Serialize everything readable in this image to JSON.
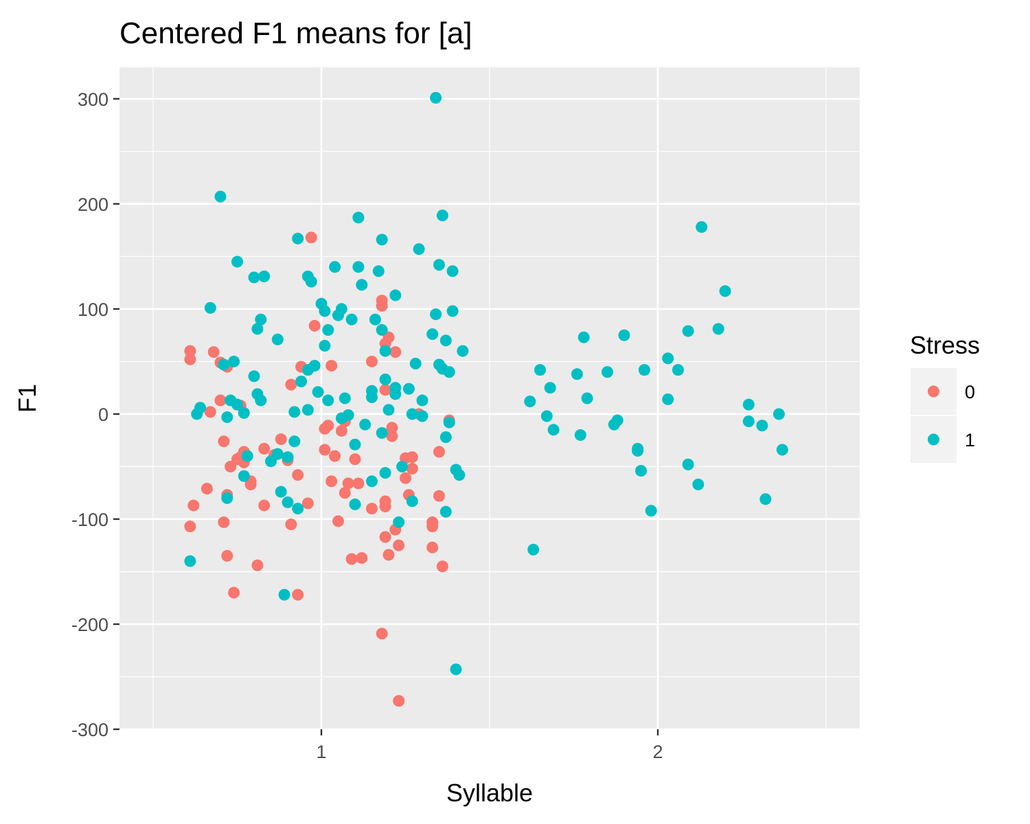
{
  "chart_data": {
    "type": "scatter",
    "title": "Centered F1 means for [a]",
    "xlabel": "Syllable",
    "ylabel": "F1",
    "xlim": [
      0.4,
      2.6
    ],
    "ylim": [
      -300,
      330
    ],
    "xticks": [
      "1",
      "2"
    ],
    "yticks": [
      "300",
      "200",
      "100",
      "0",
      "-100",
      "-200",
      "-300"
    ],
    "grid": true,
    "legend": {
      "title": "Stress",
      "position": "right"
    },
    "series": [
      {
        "name": "0",
        "color": "#F8766D",
        "points": [
          [
            0.61,
            60
          ],
          [
            0.61,
            52
          ],
          [
            0.61,
            -107
          ],
          [
            0.62,
            -87
          ],
          [
            0.66,
            -71
          ],
          [
            0.67,
            2
          ],
          [
            0.68,
            59
          ],
          [
            0.7,
            49
          ],
          [
            0.7,
            13
          ],
          [
            0.71,
            -26
          ],
          [
            0.71,
            -103
          ],
          [
            0.72,
            -135
          ],
          [
            0.72,
            -77
          ],
          [
            0.72,
            45
          ],
          [
            0.73,
            -50
          ],
          [
            0.74,
            -170
          ],
          [
            0.75,
            -43
          ],
          [
            0.76,
            8
          ],
          [
            0.76,
            -41
          ],
          [
            0.77,
            -36
          ],
          [
            0.77,
            -46
          ],
          [
            0.78,
            -40
          ],
          [
            0.79,
            -64
          ],
          [
            0.79,
            -67
          ],
          [
            0.81,
            -144
          ],
          [
            0.83,
            -33
          ],
          [
            0.83,
            -87
          ],
          [
            0.86,
            -39
          ],
          [
            0.88,
            -24
          ],
          [
            0.9,
            -44
          ],
          [
            0.91,
            28
          ],
          [
            0.91,
            -105
          ],
          [
            0.93,
            -58
          ],
          [
            0.93,
            -172
          ],
          [
            0.94,
            45
          ],
          [
            0.96,
            -85
          ],
          [
            0.97,
            168
          ],
          [
            0.98,
            84
          ],
          [
            1.01,
            -34
          ],
          [
            1.01,
            -14
          ],
          [
            1.02,
            -11
          ],
          [
            1.03,
            46
          ],
          [
            1.03,
            -64
          ],
          [
            1.04,
            -40
          ],
          [
            1.05,
            -102
          ],
          [
            1.06,
            -16
          ],
          [
            1.07,
            -7
          ],
          [
            1.07,
            -75
          ],
          [
            1.08,
            -66
          ],
          [
            1.09,
            -138
          ],
          [
            1.1,
            -43
          ],
          [
            1.11,
            -66
          ],
          [
            1.12,
            -137
          ],
          [
            1.15,
            -90
          ],
          [
            1.15,
            50
          ],
          [
            1.18,
            -209
          ],
          [
            1.18,
            108
          ],
          [
            1.18,
            103
          ],
          [
            1.19,
            67
          ],
          [
            1.19,
            23
          ],
          [
            1.19,
            -83
          ],
          [
            1.19,
            -88
          ],
          [
            1.19,
            -117
          ],
          [
            1.2,
            -134
          ],
          [
            1.2,
            73
          ],
          [
            1.21,
            -21
          ],
          [
            1.21,
            -13
          ],
          [
            1.22,
            59
          ],
          [
            1.22,
            -110
          ],
          [
            1.23,
            -125
          ],
          [
            1.23,
            -273
          ],
          [
            1.25,
            -61
          ],
          [
            1.25,
            -42
          ],
          [
            1.26,
            -77
          ],
          [
            1.27,
            -52
          ],
          [
            1.27,
            -41
          ],
          [
            1.29,
            0
          ],
          [
            1.33,
            -103
          ],
          [
            1.33,
            -107
          ],
          [
            1.33,
            -127
          ],
          [
            1.35,
            -36
          ],
          [
            1.35,
            -78
          ],
          [
            1.36,
            -145
          ],
          [
            1.38,
            -6
          ]
        ]
      },
      {
        "name": "1",
        "color": "#00BFC4",
        "points": [
          [
            0.61,
            -140
          ],
          [
            0.63,
            0
          ],
          [
            0.64,
            6
          ],
          [
            0.67,
            101
          ],
          [
            0.7,
            207
          ],
          [
            0.71,
            47
          ],
          [
            0.72,
            -80
          ],
          [
            0.72,
            -3
          ],
          [
            0.73,
            13
          ],
          [
            0.74,
            50
          ],
          [
            0.75,
            145
          ],
          [
            0.75,
            9
          ],
          [
            0.77,
            1
          ],
          [
            0.77,
            -59
          ],
          [
            0.78,
            -40
          ],
          [
            0.8,
            130
          ],
          [
            0.8,
            36
          ],
          [
            0.81,
            19
          ],
          [
            0.81,
            81
          ],
          [
            0.82,
            90
          ],
          [
            0.82,
            13
          ],
          [
            0.83,
            131
          ],
          [
            0.85,
            -45
          ],
          [
            0.87,
            -38
          ],
          [
            0.87,
            71
          ],
          [
            0.88,
            -74
          ],
          [
            0.89,
            -172
          ],
          [
            0.9,
            -84
          ],
          [
            0.9,
            -41
          ],
          [
            0.92,
            2
          ],
          [
            0.92,
            -26
          ],
          [
            0.93,
            167
          ],
          [
            0.93,
            -90
          ],
          [
            0.94,
            31
          ],
          [
            0.96,
            42
          ],
          [
            0.96,
            4
          ],
          [
            0.96,
            131
          ],
          [
            0.97,
            126
          ],
          [
            0.98,
            46
          ],
          [
            0.99,
            21
          ],
          [
            1.0,
            105
          ],
          [
            1.01,
            98
          ],
          [
            1.01,
            65
          ],
          [
            1.02,
            80
          ],
          [
            1.02,
            13
          ],
          [
            1.04,
            140
          ],
          [
            1.05,
            94
          ],
          [
            1.06,
            100
          ],
          [
            1.06,
            -4
          ],
          [
            1.07,
            15
          ],
          [
            1.08,
            -1
          ],
          [
            1.09,
            90
          ],
          [
            1.1,
            -29
          ],
          [
            1.1,
            -86
          ],
          [
            1.11,
            140
          ],
          [
            1.11,
            187
          ],
          [
            1.12,
            123
          ],
          [
            1.13,
            -10
          ],
          [
            1.15,
            16
          ],
          [
            1.15,
            22
          ],
          [
            1.15,
            -64
          ],
          [
            1.16,
            90
          ],
          [
            1.17,
            136
          ],
          [
            1.18,
            166
          ],
          [
            1.18,
            80
          ],
          [
            1.18,
            -18
          ],
          [
            1.19,
            60
          ],
          [
            1.19,
            33
          ],
          [
            1.19,
            -56
          ],
          [
            1.2,
            4
          ],
          [
            1.22,
            19
          ],
          [
            1.22,
            113
          ],
          [
            1.22,
            25
          ],
          [
            1.23,
            -103
          ],
          [
            1.24,
            -50
          ],
          [
            1.26,
            24
          ],
          [
            1.27,
            0
          ],
          [
            1.27,
            -83
          ],
          [
            1.28,
            48
          ],
          [
            1.29,
            157
          ],
          [
            1.3,
            13
          ],
          [
            1.3,
            -2
          ],
          [
            1.33,
            76
          ],
          [
            1.34,
            95
          ],
          [
            1.34,
            301
          ],
          [
            1.35,
            47
          ],
          [
            1.35,
            142
          ],
          [
            1.36,
            43
          ],
          [
            1.36,
            189
          ],
          [
            1.37,
            70
          ],
          [
            1.37,
            -93
          ],
          [
            1.37,
            -22
          ],
          [
            1.38,
            -8
          ],
          [
            1.38,
            40
          ],
          [
            1.39,
            136
          ],
          [
            1.39,
            98
          ],
          [
            1.4,
            -243
          ],
          [
            1.4,
            -53
          ],
          [
            1.41,
            -58
          ],
          [
            1.42,
            60
          ],
          [
            1.62,
            12
          ],
          [
            1.63,
            -129
          ],
          [
            1.65,
            42
          ],
          [
            1.67,
            -2
          ],
          [
            1.68,
            25
          ],
          [
            1.69,
            -15
          ],
          [
            1.76,
            38
          ],
          [
            1.77,
            -20
          ],
          [
            1.78,
            73
          ],
          [
            1.79,
            15
          ],
          [
            1.85,
            40
          ],
          [
            1.87,
            -10
          ],
          [
            1.88,
            -6
          ],
          [
            1.9,
            75
          ],
          [
            1.94,
            -35
          ],
          [
            1.94,
            -33
          ],
          [
            1.95,
            -54
          ],
          [
            1.96,
            42
          ],
          [
            1.98,
            -92
          ],
          [
            2.03,
            53
          ],
          [
            2.03,
            14
          ],
          [
            2.06,
            42
          ],
          [
            2.09,
            79
          ],
          [
            2.09,
            -48
          ],
          [
            2.12,
            -67
          ],
          [
            2.13,
            178
          ],
          [
            2.18,
            81
          ],
          [
            2.2,
            117
          ],
          [
            2.27,
            9
          ],
          [
            2.27,
            -7
          ],
          [
            2.31,
            -11
          ],
          [
            2.32,
            -81
          ],
          [
            2.36,
            0
          ],
          [
            2.37,
            -34
          ]
        ]
      }
    ]
  }
}
